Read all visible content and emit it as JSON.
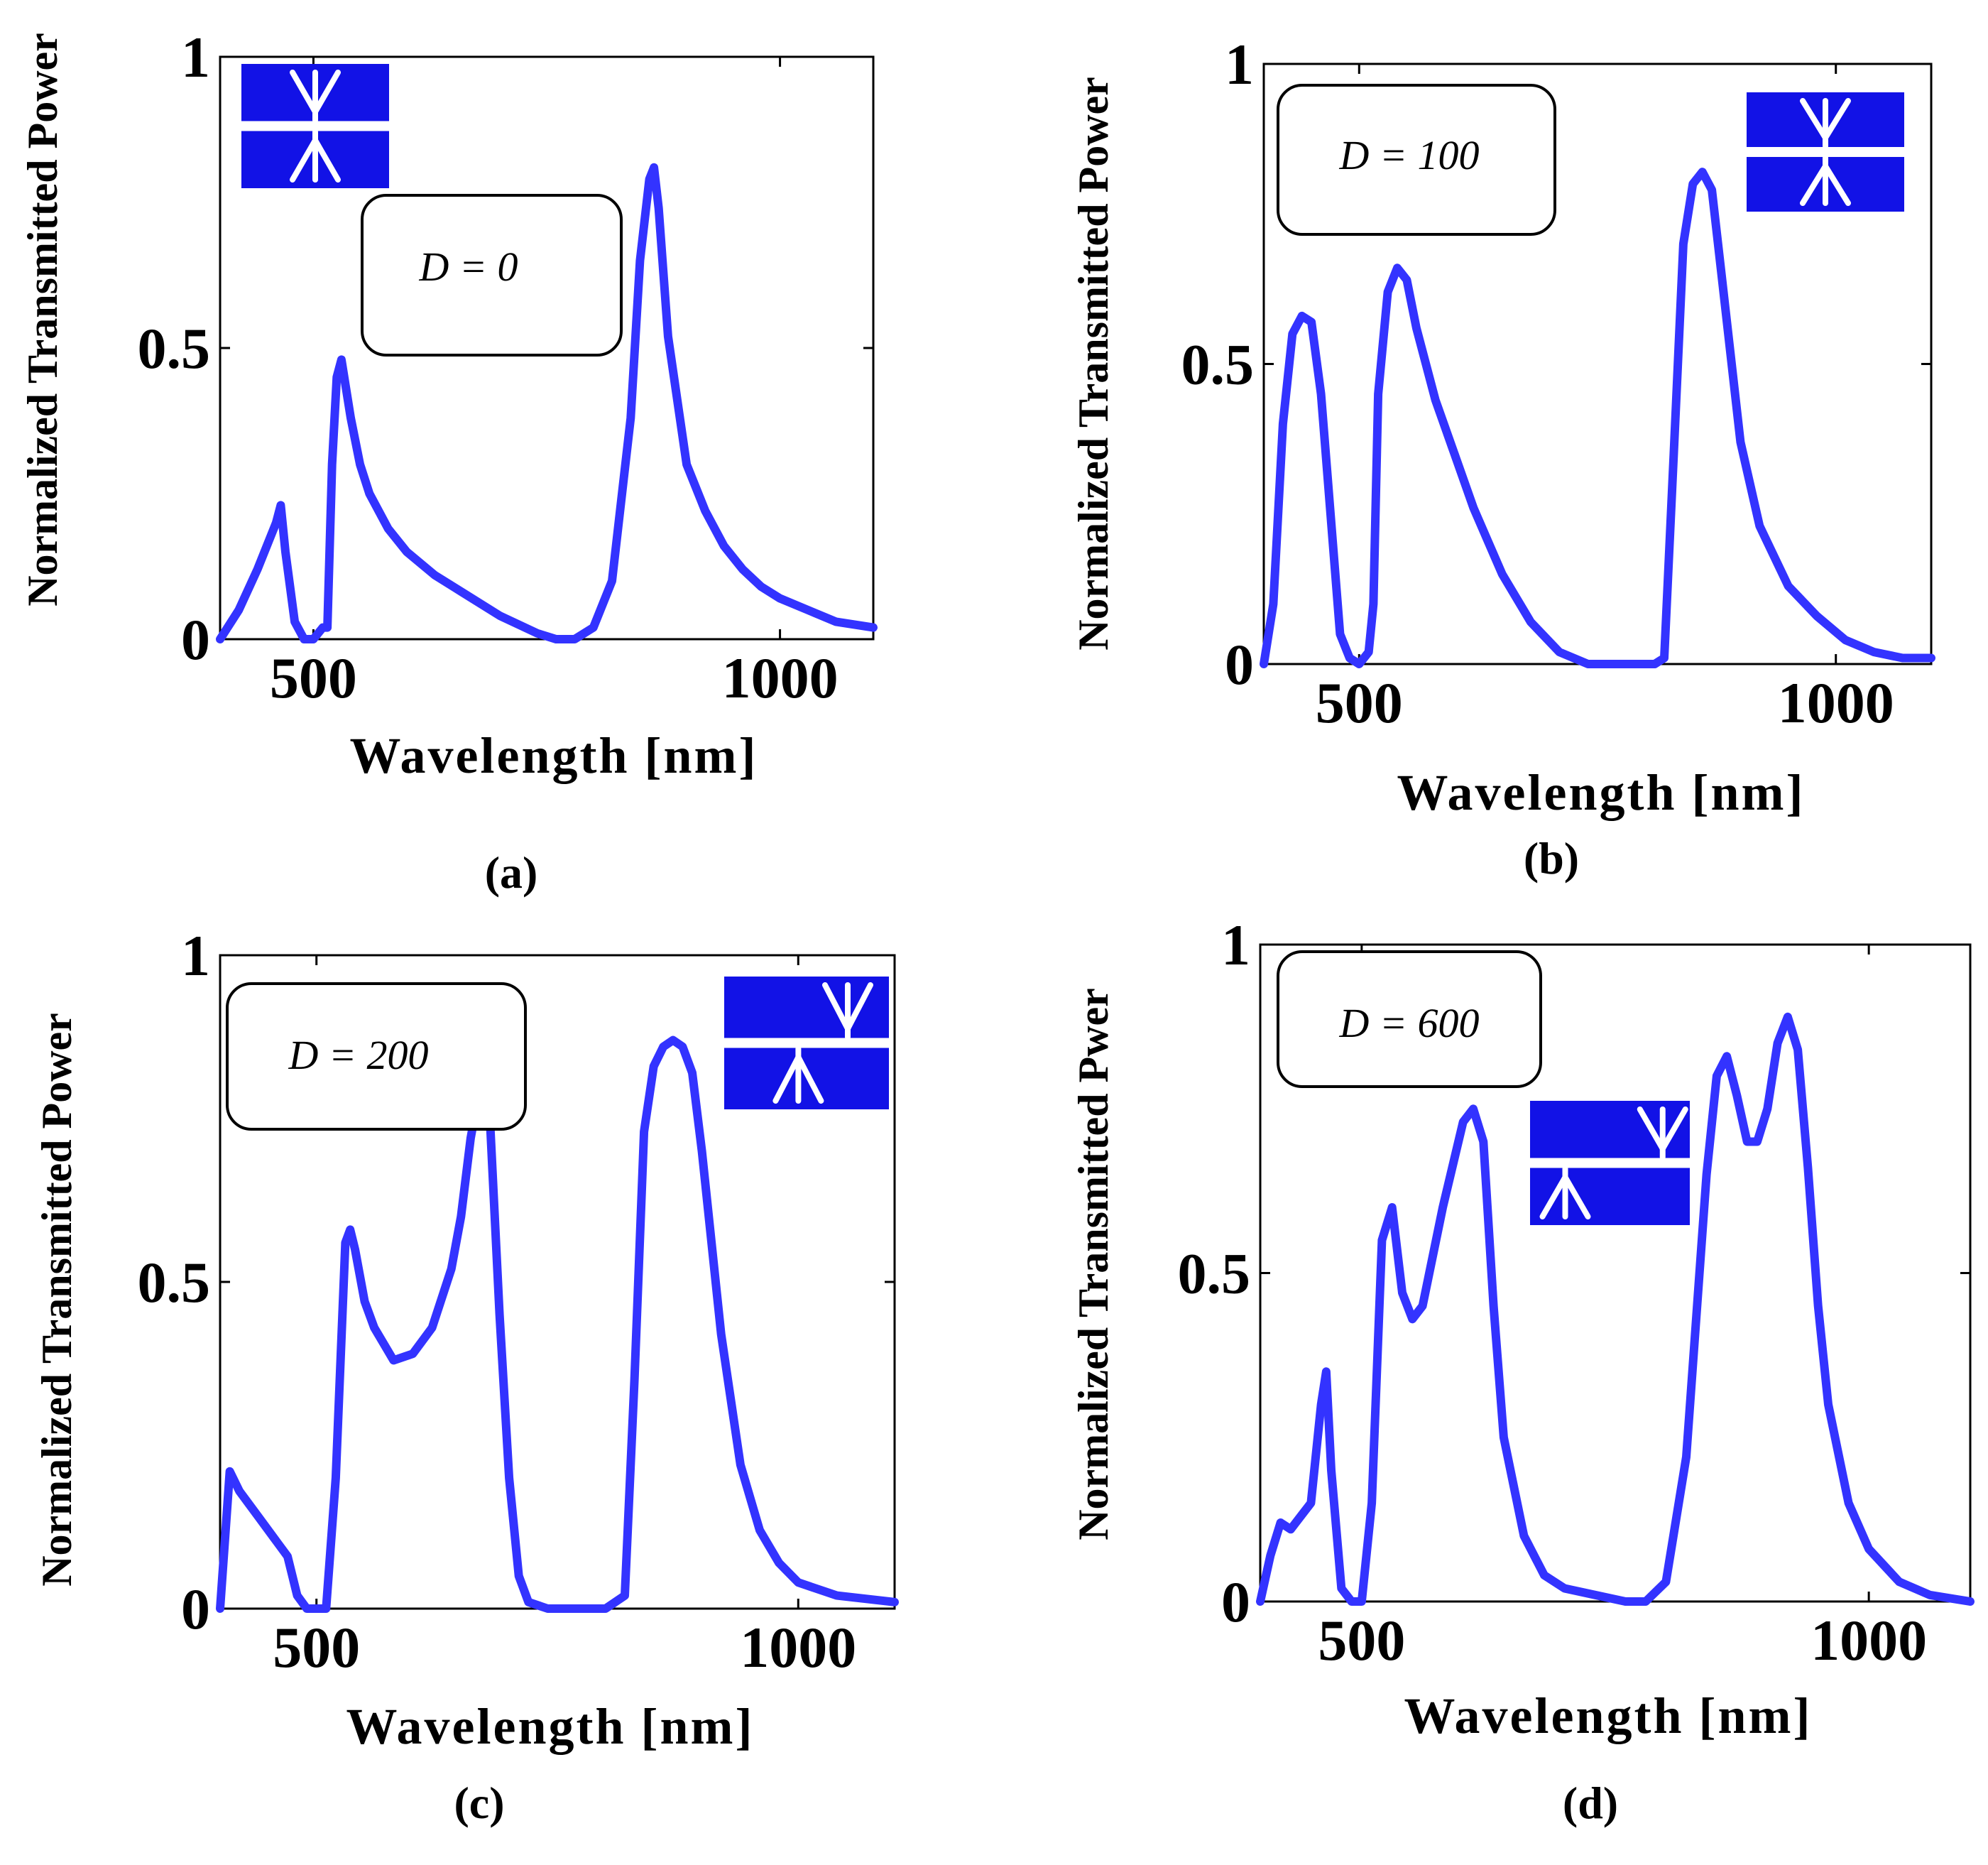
{
  "colors": {
    "series": "#3333ff",
    "inset": "#1212e6",
    "inset_mark": "#ffffff",
    "axis": "#000000"
  },
  "chart_data": [
    {
      "type": "line",
      "panel_label": "(a)",
      "annotation": "D = 0",
      "inset_icon": "waveguide-coupler-icon",
      "xlabel": "Wavelength [nm]",
      "ylabel": "Normalized Transmitted Power",
      "xlim": [
        400,
        1100
      ],
      "ylim": [
        0,
        1
      ],
      "xticks": [
        500,
        1000
      ],
      "yticks": [
        0,
        0.5,
        1
      ],
      "series": [
        {
          "x": [
            400,
            420,
            440,
            460,
            465,
            470,
            480,
            490,
            500,
            510,
            515,
            520,
            525,
            530,
            540,
            550,
            560,
            580,
            600,
            630,
            660,
            700,
            740,
            760,
            780,
            800,
            820,
            840,
            850,
            860,
            865,
            870,
            880,
            900,
            920,
            940,
            960,
            980,
            1000,
            1030,
            1060,
            1100
          ],
          "y": [
            0.0,
            0.05,
            0.12,
            0.2,
            0.23,
            0.15,
            0.03,
            0.0,
            0.0,
            0.02,
            0.02,
            0.3,
            0.45,
            0.48,
            0.38,
            0.3,
            0.25,
            0.19,
            0.15,
            0.11,
            0.08,
            0.04,
            0.01,
            0.0,
            0.0,
            0.02,
            0.1,
            0.38,
            0.65,
            0.79,
            0.81,
            0.74,
            0.52,
            0.3,
            0.22,
            0.16,
            0.12,
            0.09,
            0.07,
            0.05,
            0.03,
            0.02
          ]
        }
      ]
    },
    {
      "type": "line",
      "panel_label": "(b)",
      "annotation": "D = 100",
      "inset_icon": "waveguide-coupler-icon",
      "xlabel": "Wavelength [nm]",
      "ylabel": "Normalized Transmitted Power",
      "xlim": [
        400,
        1100
      ],
      "ylim": [
        0,
        1
      ],
      "xticks": [
        500,
        1000
      ],
      "yticks": [
        0,
        0.5,
        1
      ],
      "series": [
        {
          "x": [
            400,
            410,
            420,
            430,
            440,
            450,
            460,
            470,
            480,
            490,
            500,
            510,
            515,
            520,
            530,
            540,
            550,
            560,
            580,
            600,
            620,
            650,
            680,
            710,
            740,
            770,
            800,
            810,
            820,
            830,
            840,
            850,
            860,
            870,
            880,
            900,
            920,
            950,
            980,
            1010,
            1040,
            1070,
            1100
          ],
          "y": [
            0.0,
            0.1,
            0.4,
            0.55,
            0.58,
            0.57,
            0.45,
            0.25,
            0.05,
            0.01,
            0.0,
            0.02,
            0.1,
            0.45,
            0.62,
            0.66,
            0.64,
            0.56,
            0.44,
            0.35,
            0.26,
            0.15,
            0.07,
            0.02,
            0.0,
            0.0,
            0.0,
            0.0,
            0.01,
            0.35,
            0.7,
            0.8,
            0.82,
            0.79,
            0.65,
            0.37,
            0.23,
            0.13,
            0.08,
            0.04,
            0.02,
            0.01,
            0.01
          ]
        }
      ]
    },
    {
      "type": "line",
      "panel_label": "(c)",
      "annotation": "D = 200",
      "inset_icon": "waveguide-coupler-icon",
      "xlabel": "Wavelength [nm]",
      "ylabel": "Normalized Transmitted Power",
      "xlim": [
        400,
        1100
      ],
      "ylim": [
        0,
        1
      ],
      "xticks": [
        500,
        1000
      ],
      "yticks": [
        0,
        0.5,
        1
      ],
      "series": [
        {
          "x": [
            400,
            410,
            420,
            440,
            460,
            470,
            480,
            490,
            500,
            510,
            520,
            530,
            535,
            540,
            550,
            560,
            580,
            600,
            620,
            640,
            650,
            660,
            670,
            675,
            680,
            690,
            700,
            710,
            720,
            740,
            760,
            780,
            800,
            820,
            830,
            840,
            850,
            860,
            870,
            880,
            890,
            900,
            920,
            940,
            960,
            980,
            1000,
            1040,
            1100
          ],
          "y": [
            0.0,
            0.21,
            0.18,
            0.14,
            0.1,
            0.08,
            0.02,
            0.0,
            0.0,
            0.0,
            0.2,
            0.56,
            0.58,
            0.55,
            0.47,
            0.43,
            0.38,
            0.39,
            0.43,
            0.52,
            0.6,
            0.72,
            0.8,
            0.81,
            0.75,
            0.45,
            0.2,
            0.05,
            0.01,
            0.0,
            0.0,
            0.0,
            0.0,
            0.02,
            0.35,
            0.73,
            0.83,
            0.86,
            0.87,
            0.86,
            0.82,
            0.7,
            0.42,
            0.22,
            0.12,
            0.07,
            0.04,
            0.02,
            0.01
          ]
        }
      ]
    },
    {
      "type": "line",
      "panel_label": "(d)",
      "annotation": "D = 600",
      "inset_icon": "waveguide-coupler-icon",
      "xlabel": "Wavelength [nm]",
      "ylabel": "Normalized Transmitted Pwer",
      "xlim": [
        400,
        1100
      ],
      "ylim": [
        0,
        1
      ],
      "xticks": [
        500,
        1000
      ],
      "yticks": [
        0,
        0.5,
        1
      ],
      "series": [
        {
          "x": [
            400,
            410,
            420,
            430,
            440,
            450,
            460,
            465,
            470,
            480,
            490,
            500,
            510,
            520,
            530,
            540,
            550,
            560,
            580,
            600,
            610,
            620,
            630,
            640,
            660,
            680,
            700,
            730,
            760,
            780,
            800,
            820,
            840,
            850,
            860,
            870,
            880,
            890,
            900,
            910,
            920,
            930,
            940,
            950,
            960,
            980,
            1000,
            1030,
            1060,
            1100
          ],
          "y": [
            0.0,
            0.07,
            0.12,
            0.11,
            0.13,
            0.15,
            0.3,
            0.35,
            0.2,
            0.02,
            0.0,
            0.0,
            0.15,
            0.55,
            0.6,
            0.47,
            0.43,
            0.45,
            0.6,
            0.73,
            0.75,
            0.7,
            0.45,
            0.25,
            0.1,
            0.04,
            0.02,
            0.01,
            0.0,
            0.0,
            0.03,
            0.22,
            0.65,
            0.8,
            0.83,
            0.77,
            0.7,
            0.7,
            0.75,
            0.85,
            0.89,
            0.84,
            0.66,
            0.45,
            0.3,
            0.15,
            0.08,
            0.03,
            0.01,
            0.0
          ]
        }
      ]
    }
  ]
}
